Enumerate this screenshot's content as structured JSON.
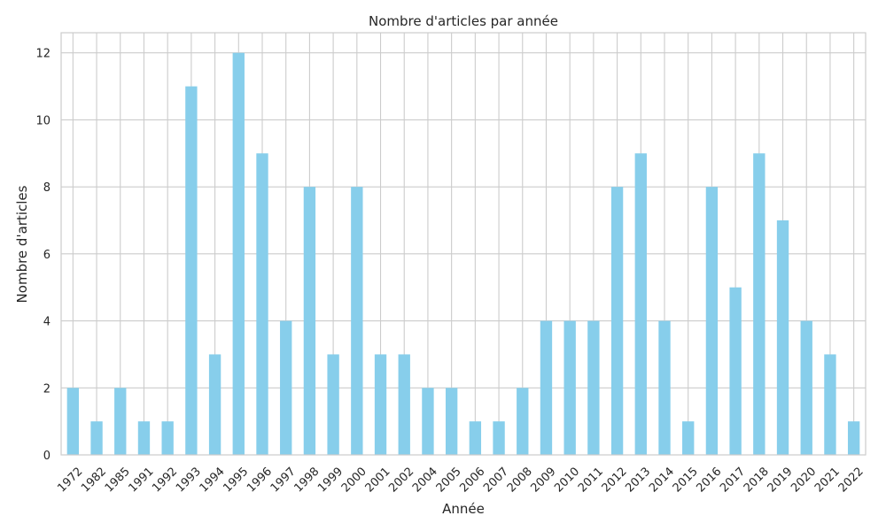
{
  "chart_data": {
    "type": "bar",
    "title": "Nombre d'articles par année",
    "xlabel": "Année",
    "ylabel": "Nombre d'articles",
    "categories": [
      "1972",
      "1982",
      "1985",
      "1991",
      "1992",
      "1993",
      "1994",
      "1995",
      "1996",
      "1997",
      "1998",
      "1999",
      "2000",
      "2001",
      "2002",
      "2004",
      "2005",
      "2006",
      "2007",
      "2008",
      "2009",
      "2010",
      "2011",
      "2012",
      "2013",
      "2014",
      "2015",
      "2016",
      "2017",
      "2018",
      "2019",
      "2020",
      "2021",
      "2022"
    ],
    "values": [
      2,
      1,
      2,
      1,
      1,
      11,
      3,
      12,
      9,
      4,
      8,
      3,
      8,
      3,
      3,
      2,
      2,
      1,
      1,
      2,
      4,
      4,
      4,
      8,
      9,
      4,
      1,
      8,
      5,
      9,
      7,
      4,
      3,
      1
    ],
    "ylim": [
      0,
      12.6
    ],
    "yticks": [
      0,
      2,
      4,
      6,
      8,
      10,
      12
    ],
    "bar_color": "#87ceeb",
    "grid": true,
    "grid_color": "#cccccc"
  }
}
